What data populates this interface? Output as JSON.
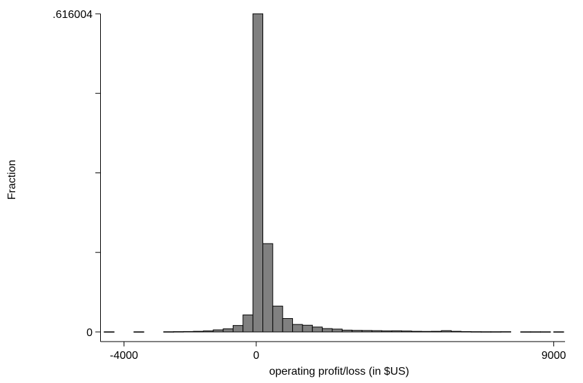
{
  "chart_data": {
    "type": "bar",
    "xlabel": "operating profit/loss (in $US)",
    "ylabel": "Fraction",
    "x_tick_labels": [
      "-4000",
      "0",
      "9000"
    ],
    "y_tick_labels": [
      ".616004",
      "0"
    ],
    "xlim": [
      -4700,
      9300
    ],
    "ylim": [
      0,
      0.616004
    ],
    "bin_width": 300,
    "series": [
      {
        "bins": [
          {
            "x0": -4600,
            "x1": -4300,
            "y": 0.0003
          },
          {
            "x0": -3700,
            "x1": -3400,
            "y": 0.0003
          },
          {
            "x0": -2800,
            "x1": -2500,
            "y": 0.0004
          },
          {
            "x0": -2500,
            "x1": -2200,
            "y": 0.0006
          },
          {
            "x0": -2200,
            "x1": -1900,
            "y": 0.0008
          },
          {
            "x0": -1900,
            "x1": -1600,
            "y": 0.0012
          },
          {
            "x0": -1600,
            "x1": -1300,
            "y": 0.002
          },
          {
            "x0": -1300,
            "x1": -1000,
            "y": 0.004
          },
          {
            "x0": -1000,
            "x1": -700,
            "y": 0.006
          },
          {
            "x0": -700,
            "x1": -400,
            "y": 0.0125
          },
          {
            "x0": -400,
            "x1": -100,
            "y": 0.033
          },
          {
            "x0": -100,
            "x1": 200,
            "y": 0.616004
          },
          {
            "x0": 200,
            "x1": 500,
            "y": 0.171
          },
          {
            "x0": 500,
            "x1": 800,
            "y": 0.05
          },
          {
            "x0": 800,
            "x1": 1100,
            "y": 0.026
          },
          {
            "x0": 1100,
            "x1": 1400,
            "y": 0.0145
          },
          {
            "x0": 1400,
            "x1": 1700,
            "y": 0.013
          },
          {
            "x0": 1700,
            "x1": 2000,
            "y": 0.0095
          },
          {
            "x0": 2000,
            "x1": 2300,
            "y": 0.0065
          },
          {
            "x0": 2300,
            "x1": 2600,
            "y": 0.0055
          },
          {
            "x0": 2600,
            "x1": 2900,
            "y": 0.0035
          },
          {
            "x0": 2900,
            "x1": 3200,
            "y": 0.003
          },
          {
            "x0": 3200,
            "x1": 3500,
            "y": 0.0028
          },
          {
            "x0": 3500,
            "x1": 3800,
            "y": 0.0025
          },
          {
            "x0": 3800,
            "x1": 4100,
            "y": 0.002
          },
          {
            "x0": 4100,
            "x1": 4400,
            "y": 0.0022
          },
          {
            "x0": 4400,
            "x1": 4700,
            "y": 0.0018
          },
          {
            "x0": 4700,
            "x1": 5000,
            "y": 0.0012
          },
          {
            "x0": 5000,
            "x1": 5300,
            "y": 0.001
          },
          {
            "x0": 5300,
            "x1": 5600,
            "y": 0.0012
          },
          {
            "x0": 5600,
            "x1": 5900,
            "y": 0.0025
          },
          {
            "x0": 5900,
            "x1": 6200,
            "y": 0.0012
          },
          {
            "x0": 6200,
            "x1": 6500,
            "y": 0.0007
          },
          {
            "x0": 6500,
            "x1": 6800,
            "y": 0.0005
          },
          {
            "x0": 6800,
            "x1": 7100,
            "y": 0.0004
          },
          {
            "x0": 7100,
            "x1": 7400,
            "y": 0.0004
          },
          {
            "x0": 7400,
            "x1": 7700,
            "y": 0.0005
          },
          {
            "x0": 8000,
            "x1": 8300,
            "y": 0.0003
          },
          {
            "x0": 8300,
            "x1": 8600,
            "y": 0.0003
          },
          {
            "x0": 8600,
            "x1": 8900,
            "y": 0.0003
          },
          {
            "x0": 9000,
            "x1": 9300,
            "y": 0.0003
          }
        ]
      }
    ],
    "x_ticks": [
      -4000,
      0,
      9000
    ],
    "y_ticks_minor": [
      0.154001,
      0.308002,
      0.462003
    ],
    "colors": {
      "bar_fill": "#808080",
      "bar_stroke": "#000000",
      "axis": "#000000"
    },
    "grid": false
  }
}
